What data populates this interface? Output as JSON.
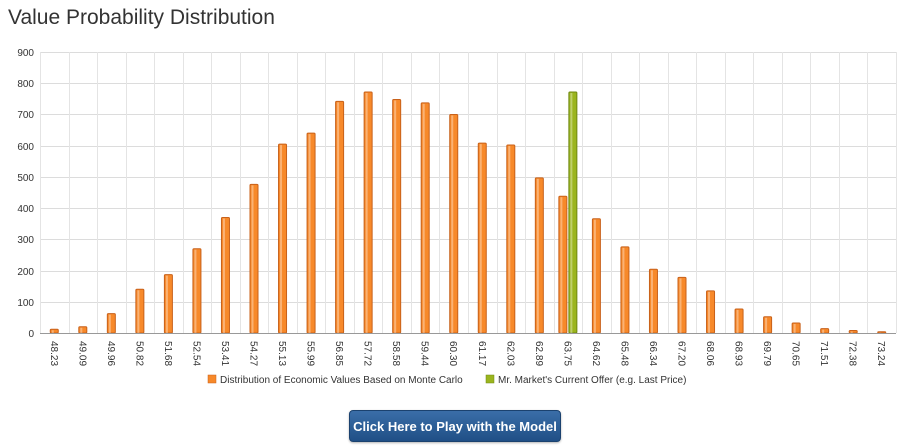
{
  "page": {
    "title": "Value Probability Distribution",
    "button_label": "Click Here to Play with the Model"
  },
  "chart_data": {
    "type": "bar",
    "title": "",
    "xlabel": "",
    "ylabel": "",
    "ylim": [
      0,
      900
    ],
    "yticks": [
      0,
      100,
      200,
      300,
      400,
      500,
      600,
      700,
      800,
      900
    ],
    "grid": true,
    "legend_position": "bottom-center",
    "categories": [
      "48.23",
      "49.09",
      "49.96",
      "50.82",
      "51.68",
      "52.54",
      "53.41",
      "54.27",
      "55.13",
      "55.99",
      "56.85",
      "57.72",
      "58.58",
      "59.44",
      "60.30",
      "61.17",
      "62.03",
      "62.89",
      "63.75",
      "64.62",
      "65.48",
      "66.34",
      "67.20",
      "68.06",
      "68.93",
      "69.79",
      "70.65",
      "71.51",
      "72.38",
      "73.24"
    ],
    "series": [
      {
        "name": "Distribution of Economic Values Based on Monte Carlo",
        "color": "#f7892a",
        "values": [
          12,
          20,
          62,
          140,
          187,
          270,
          370,
          476,
          605,
          640,
          742,
          772,
          748,
          737,
          700,
          608,
          602,
          497,
          438,
          366,
          276,
          204,
          178,
          135,
          77,
          52,
          32,
          14,
          8,
          4
        ]
      },
      {
        "name": "Mr. Market's Current Offer (e.g. Last Price)",
        "color": "#9bb51e",
        "values": [
          null,
          null,
          null,
          null,
          null,
          null,
          null,
          null,
          null,
          null,
          null,
          null,
          null,
          null,
          null,
          null,
          null,
          null,
          772,
          null,
          null,
          null,
          null,
          null,
          null,
          null,
          null,
          null,
          null,
          null
        ]
      }
    ]
  }
}
